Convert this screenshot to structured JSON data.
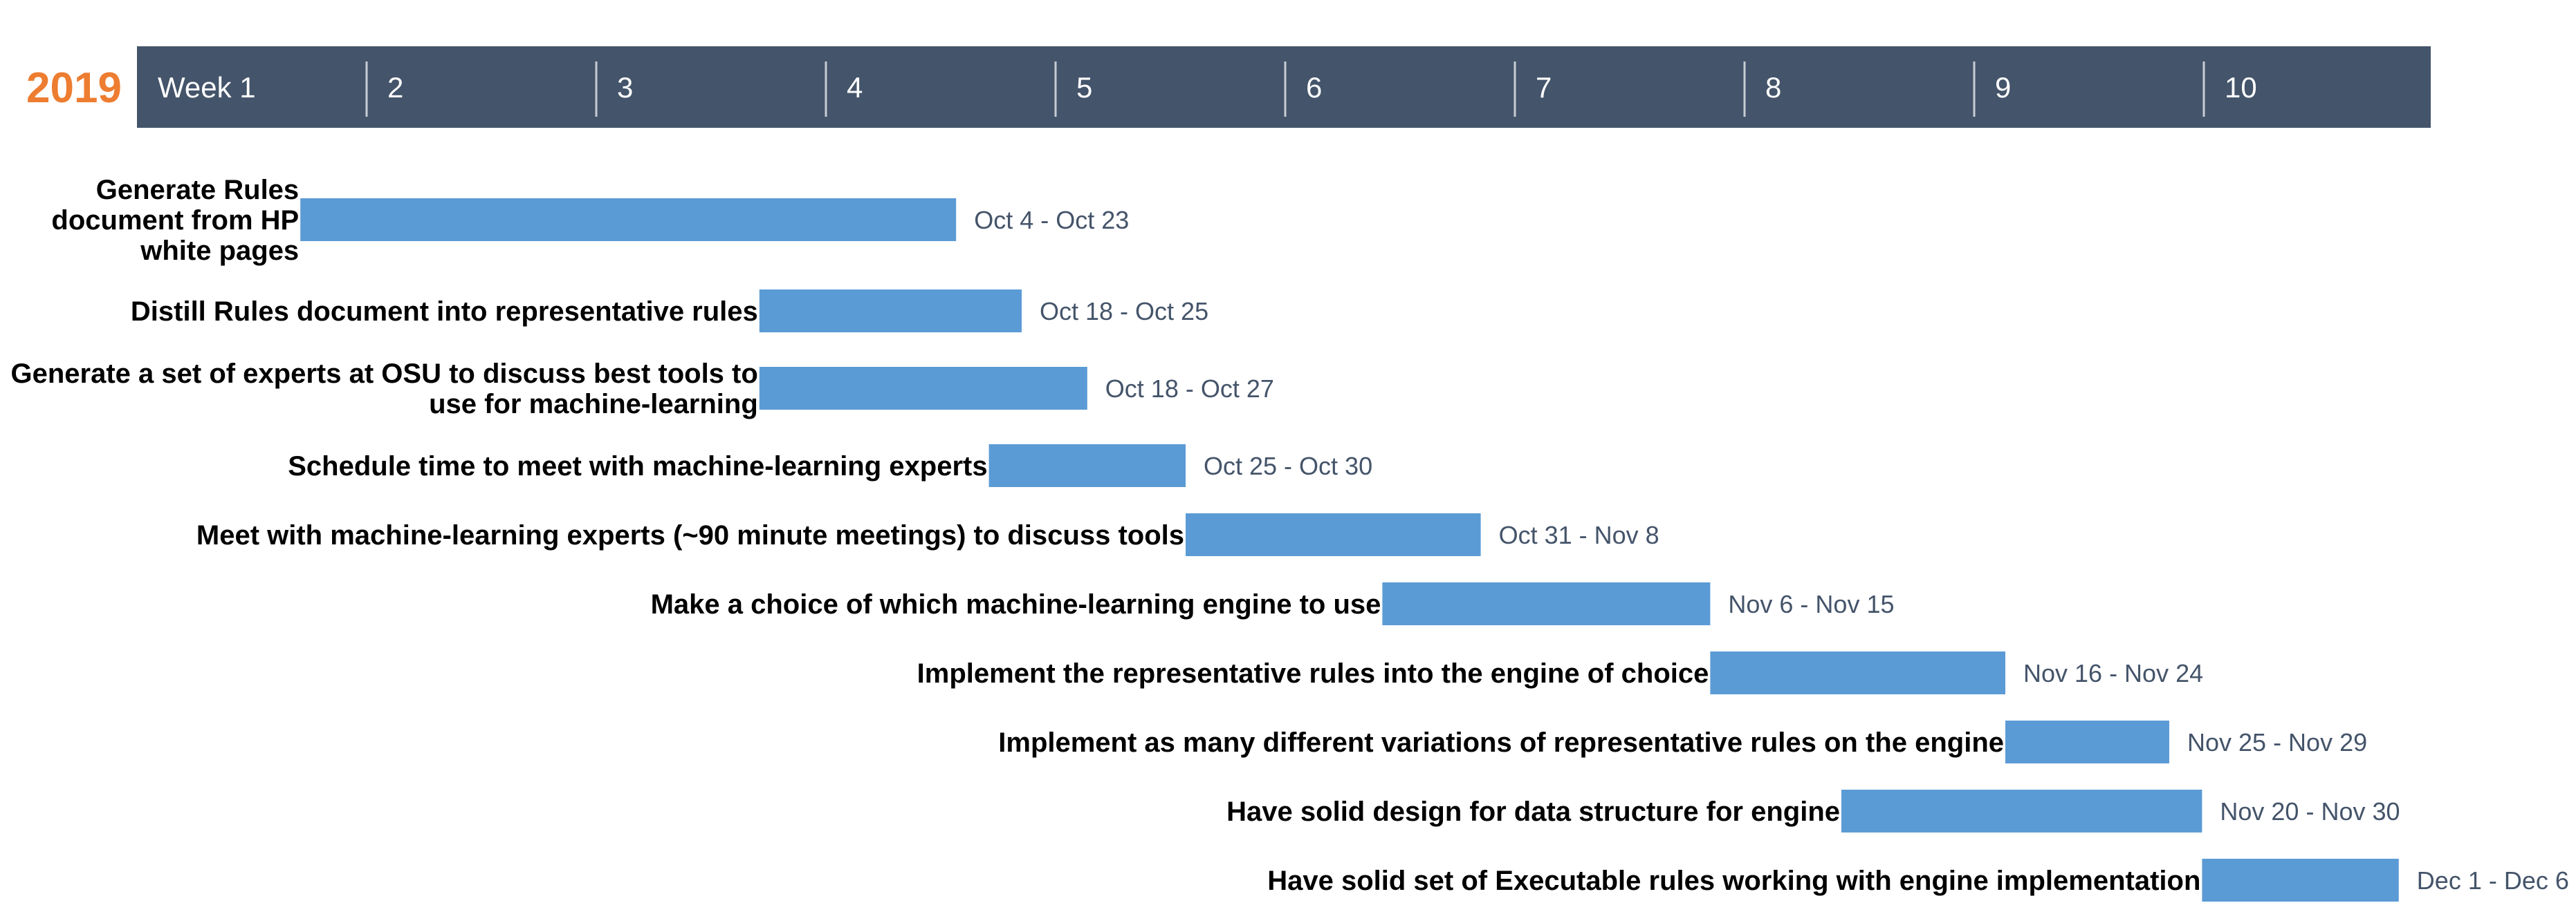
{
  "chart_data": {
    "type": "gantt",
    "year": "2019",
    "weeks": [
      "Week 1",
      "2",
      "3",
      "4",
      "5",
      "6",
      "7",
      "8",
      "9",
      "10"
    ],
    "colors": {
      "year": "#ed7d31",
      "header_bg": "#44546a",
      "bar": "#5b9bd5",
      "date_label": "#44546a",
      "week_divider": "#c7ccd4"
    },
    "tasks": [
      {
        "lines": [
          "Generate Rules",
          "document from HP",
          "white pages"
        ],
        "start": "Oct 4",
        "end": "Oct 23",
        "dates": "Oct 4 - Oct 23"
      },
      {
        "lines": [
          "Distill Rules document into representative rules"
        ],
        "start": "Oct 18",
        "end": "Oct 25",
        "dates": "Oct 18 - Oct 25"
      },
      {
        "lines": [
          "Generate a set of experts at OSU to discuss best tools to",
          "use for machine-learning"
        ],
        "start": "Oct 18",
        "end": "Oct 27",
        "dates": "Oct 18 - Oct 27"
      },
      {
        "lines": [
          "Schedule time to meet with machine-learning experts"
        ],
        "start": "Oct 25",
        "end": "Oct 30",
        "dates": "Oct 25 - Oct 30"
      },
      {
        "lines": [
          "Meet with machine-learning experts (~90 minute meetings) to discuss tools"
        ],
        "start": "Oct 31",
        "end": "Nov 8",
        "dates": "Oct 31 - Nov 8"
      },
      {
        "lines": [
          "Make a choice of which machine-learning engine to use"
        ],
        "start": "Nov 6",
        "end": "Nov 15",
        "dates": "Nov 6 - Nov 15"
      },
      {
        "lines": [
          "Implement the representative rules into the engine of choice"
        ],
        "start": "Nov 16",
        "end": "Nov 24",
        "dates": "Nov 16 - Nov 24"
      },
      {
        "lines": [
          "Implement as many different variations of representative rules on the engine"
        ],
        "start": "Nov 25",
        "end": "Nov 29",
        "dates": "Nov 25 - Nov 29"
      },
      {
        "lines": [
          "Have solid design for data structure for engine"
        ],
        "start": "Nov 20",
        "end": "Nov 30",
        "dates": "Nov 20 - Nov 30"
      },
      {
        "lines": [
          "Have solid set of Executable rules working with engine implementation"
        ],
        "start": "Dec 1",
        "end": "Dec 6",
        "dates": "Dec 1 - Dec 6"
      }
    ]
  }
}
